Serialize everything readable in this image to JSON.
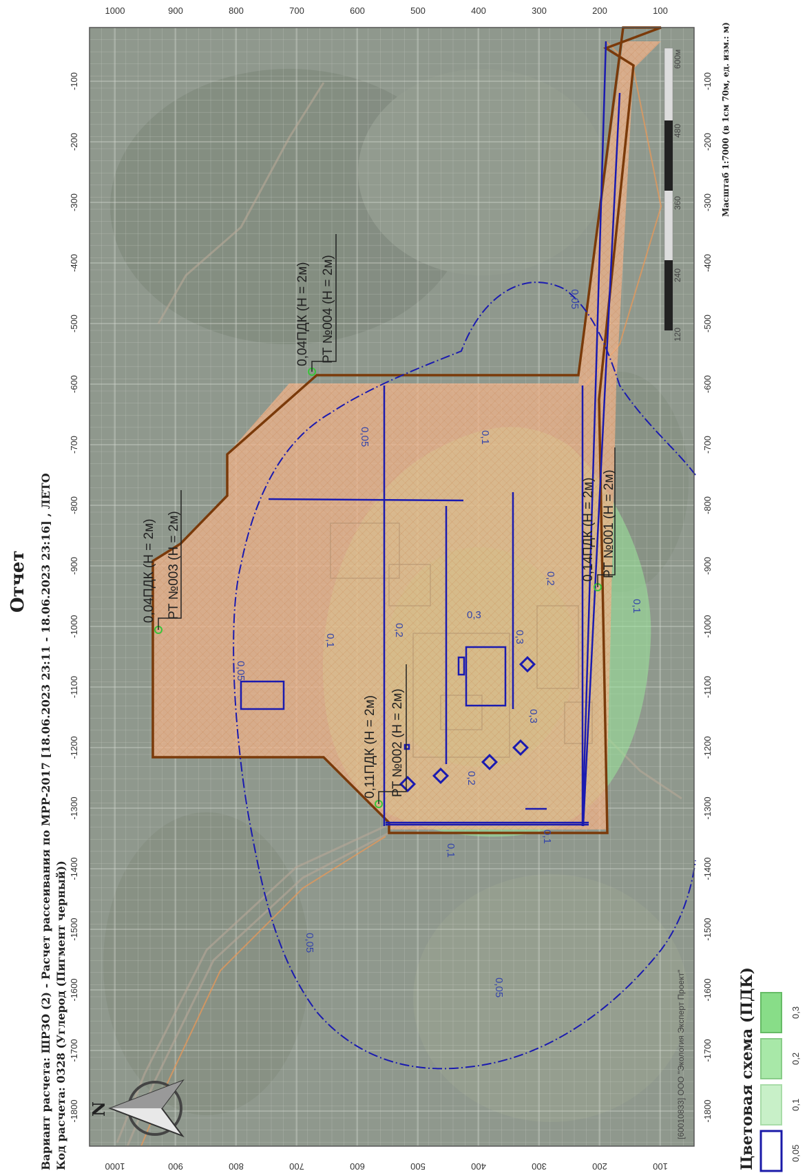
{
  "header": {
    "title": "Отчет",
    "variant_line": "Вариант расчета: ШРЗО (2) - Расчет рассеивания по МРР-2017 [18.06.2023 23:11 - 18.06.2023 23:16] , ЛЕТО",
    "code_line": "Код расчета: 0328 (Углерод (Пигмент черный))"
  },
  "axes": {
    "top_ticks": [
      "1000",
      "900",
      "800",
      "700",
      "600",
      "500",
      "400",
      "300",
      "200",
      "100"
    ],
    "bottom_ticks": [
      "1000",
      "900",
      "800",
      "700",
      "600",
      "500",
      "400",
      "300",
      "200",
      "100"
    ],
    "left_ticks": [
      "-100",
      "-200",
      "-300",
      "-400",
      "-500",
      "-600",
      "-700",
      "-800",
      "-900",
      "-1000",
      "-1100",
      "-1200",
      "-1300",
      "-1400",
      "-1500",
      "-1600",
      "-1700",
      "-1800"
    ],
    "right_ticks": [
      "-100",
      "-200",
      "-300",
      "-400",
      "-500",
      "-600",
      "-700",
      "-800",
      "-900",
      "-1000",
      "-1100",
      "-1200",
      "-1300",
      "-1400",
      "-1500",
      "-1600",
      "-1700",
      "-1800"
    ]
  },
  "scale": {
    "text": "Масштаб 1:7000 (в 1см 70м, ед. изм.: м)",
    "labels": [
      "120",
      "240",
      "360",
      "480",
      "600м"
    ]
  },
  "points": [
    {
      "id": "pt-001",
      "name": "РТ №001 (H = 2м)",
      "value": "0,14ПДК (H = 2м)"
    },
    {
      "id": "pt-002",
      "name": "РТ №002 (H = 2м)",
      "value": "0,11ПДК (H = 2м)"
    },
    {
      "id": "pt-003",
      "name": "РТ №003 (H = 2м)",
      "value": "0,04ПДК (H = 2м)"
    },
    {
      "id": "pt-004",
      "name": "РТ №004 (H = 2м)",
      "value": "0,04ПДК (H = 2м)"
    }
  ],
  "isolines": {
    "outer": "0,05",
    "mid": "0,1",
    "inner_02": "0,2",
    "inner_03": "0,3"
  },
  "legend": {
    "title": "Цветовая схема (ПДК)",
    "items": [
      {
        "label": "0,05",
        "color": "#ffffff",
        "border": "#1a1aa8"
      },
      {
        "label": "0,1",
        "color": "#c8f0c8",
        "border": "#a8dca8"
      },
      {
        "label": "0,2",
        "color": "#a8e8a8",
        "border": "#88cc88"
      },
      {
        "label": "0,3",
        "color": "#88dd88",
        "border": "#66bb66"
      }
    ]
  },
  "watermark": "[60010833] ООО \"Экология Эксперт Проект\"",
  "north_label": "N",
  "colors": {
    "boundary": "#7a3a0a",
    "zone_fill": "#f2b48a",
    "isoline": "#1a1ab0",
    "green": "#8fe08f",
    "satellite": "#8a948a"
  }
}
